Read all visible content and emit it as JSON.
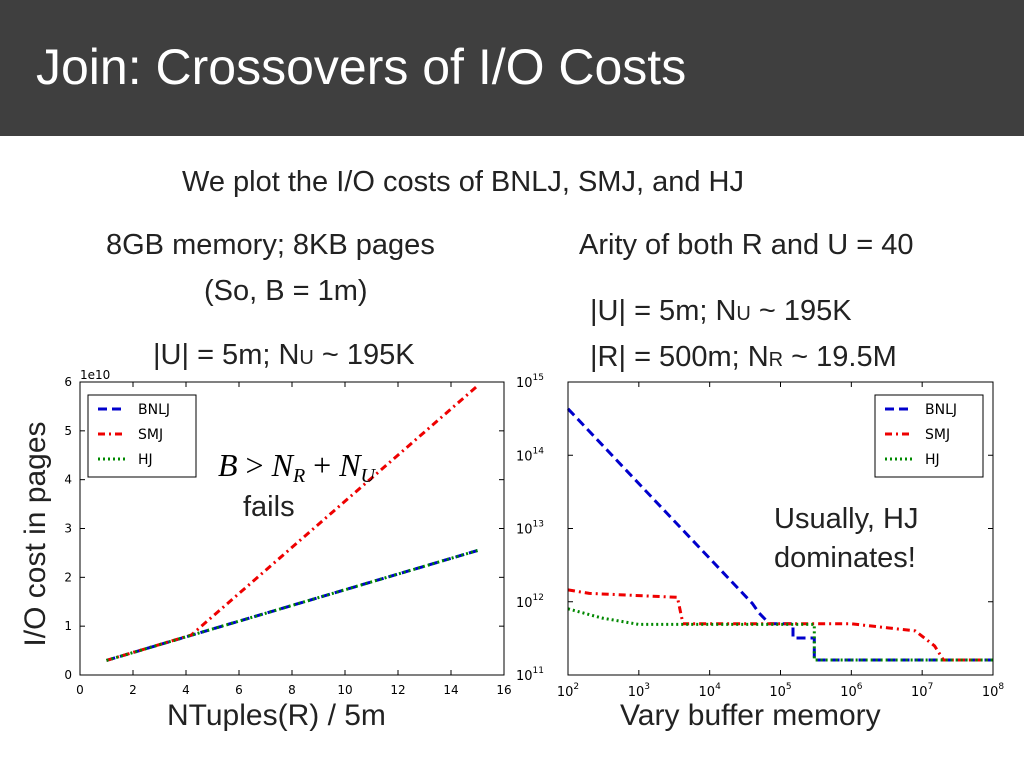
{
  "slide": {
    "title": "Join: Crossovers of I/O Costs",
    "intro": "We plot the I/O costs of BNLJ, SMJ, and HJ",
    "left_caption_1": "8GB memory; 8KB pages",
    "left_caption_2": "(So, B = 1m)",
    "left_caption_3_prefix": "|U| = 5m; N",
    "left_caption_3_sub": "U",
    "left_caption_3_suffix": " ~ 195K",
    "right_caption_1": "Arity of both R and U = 40",
    "right_caption_2_prefix": "|U| = 5m; N",
    "right_caption_2_sub": "U",
    "right_caption_2_suffix": " ~ 195K",
    "right_caption_3_prefix": "|R| = 500m; N",
    "right_caption_3_sub": "R",
    "right_caption_3_suffix": " ~ 19.5M",
    "y_axis_label": "I/O cost in pages",
    "left_x_label": "NTuples(R) / 5m",
    "right_x_label": "Vary buffer memory",
    "fails_label": "fails",
    "formula": {
      "B": "B",
      "gt": ">",
      "N": "N",
      "R": "R",
      "plus": "+",
      "N2": "N",
      "U": "U"
    },
    "hj_note_1": "Usually, HJ",
    "hj_note_2": "dominates!"
  },
  "chart_data": [
    {
      "type": "line",
      "xlim": [
        0,
        16
      ],
      "ylim": [
        0,
        6
      ],
      "y_multiplier": "1e10",
      "x_ticks": [
        0,
        2,
        4,
        6,
        8,
        10,
        12,
        14,
        16
      ],
      "y_ticks": [
        0,
        1,
        2,
        3,
        4,
        5,
        6
      ],
      "legend": "top-left",
      "series": [
        {
          "name": "BNLJ",
          "color": "#0000cc",
          "style": "dashed",
          "x": [
            1,
            15
          ],
          "y": [
            0.3,
            2.55
          ]
        },
        {
          "name": "SMJ",
          "color": "#ee0000",
          "style": "dashdot",
          "x": [
            1,
            4.2,
            15
          ],
          "y": [
            0.3,
            0.82,
            5.92
          ]
        },
        {
          "name": "HJ",
          "color": "#008800",
          "style": "dotted",
          "x": [
            1,
            15
          ],
          "y": [
            0.3,
            2.55
          ]
        }
      ]
    },
    {
      "type": "line",
      "x_scale": "log",
      "y_scale": "log",
      "xlim": [
        100,
        100000000
      ],
      "ylim": [
        100000000000,
        1000000000000000
      ],
      "x_ticks": [
        100,
        1000,
        10000,
        100000,
        1000000,
        10000000,
        100000000
      ],
      "x_tick_labels": [
        [
          "10",
          "2"
        ],
        [
          "10",
          "3"
        ],
        [
          "10",
          "4"
        ],
        [
          "10",
          "5"
        ],
        [
          "10",
          "6"
        ],
        [
          "10",
          "7"
        ],
        [
          "10",
          "8"
        ]
      ],
      "y_ticks": [
        100000000000,
        1000000000000,
        10000000000000,
        100000000000000,
        1000000000000000
      ],
      "y_tick_labels": [
        [
          "10",
          "11"
        ],
        [
          "10",
          "12"
        ],
        [
          "10",
          "13"
        ],
        [
          "10",
          "14"
        ],
        [
          "10",
          "15"
        ]
      ],
      "legend": "top-right",
      "series": [
        {
          "name": "BNLJ",
          "color": "#0000cc",
          "style": "dashed",
          "x": [
            100,
            40000,
            50000,
            70000,
            70000,
            150000,
            150000,
            300000,
            300000,
            100000000
          ],
          "y": [
            430000000000000,
            950000000000,
            700000000000,
            500000000000,
            500000000000,
            500000000000,
            320000000000,
            320000000000,
            160000000000,
            160000000000
          ]
        },
        {
          "name": "SMJ",
          "color": "#ee0000",
          "style": "dashdot",
          "x": [
            100,
            200,
            3500,
            4200,
            1000000,
            8000000,
            15000000,
            20000000,
            100000000
          ],
          "y": [
            1450000000000,
            1300000000000,
            1150000000000,
            500000000000,
            500000000000,
            400000000000,
            250000000000,
            160000000000,
            160000000000
          ]
        },
        {
          "name": "HJ",
          "color": "#008800",
          "style": "dotted",
          "x": [
            100,
            300,
            1000,
            300000,
            300000,
            100000000
          ],
          "y": [
            800000000000,
            600000000000,
            490000000000,
            490000000000,
            160000000000,
            160000000000
          ]
        }
      ]
    }
  ]
}
